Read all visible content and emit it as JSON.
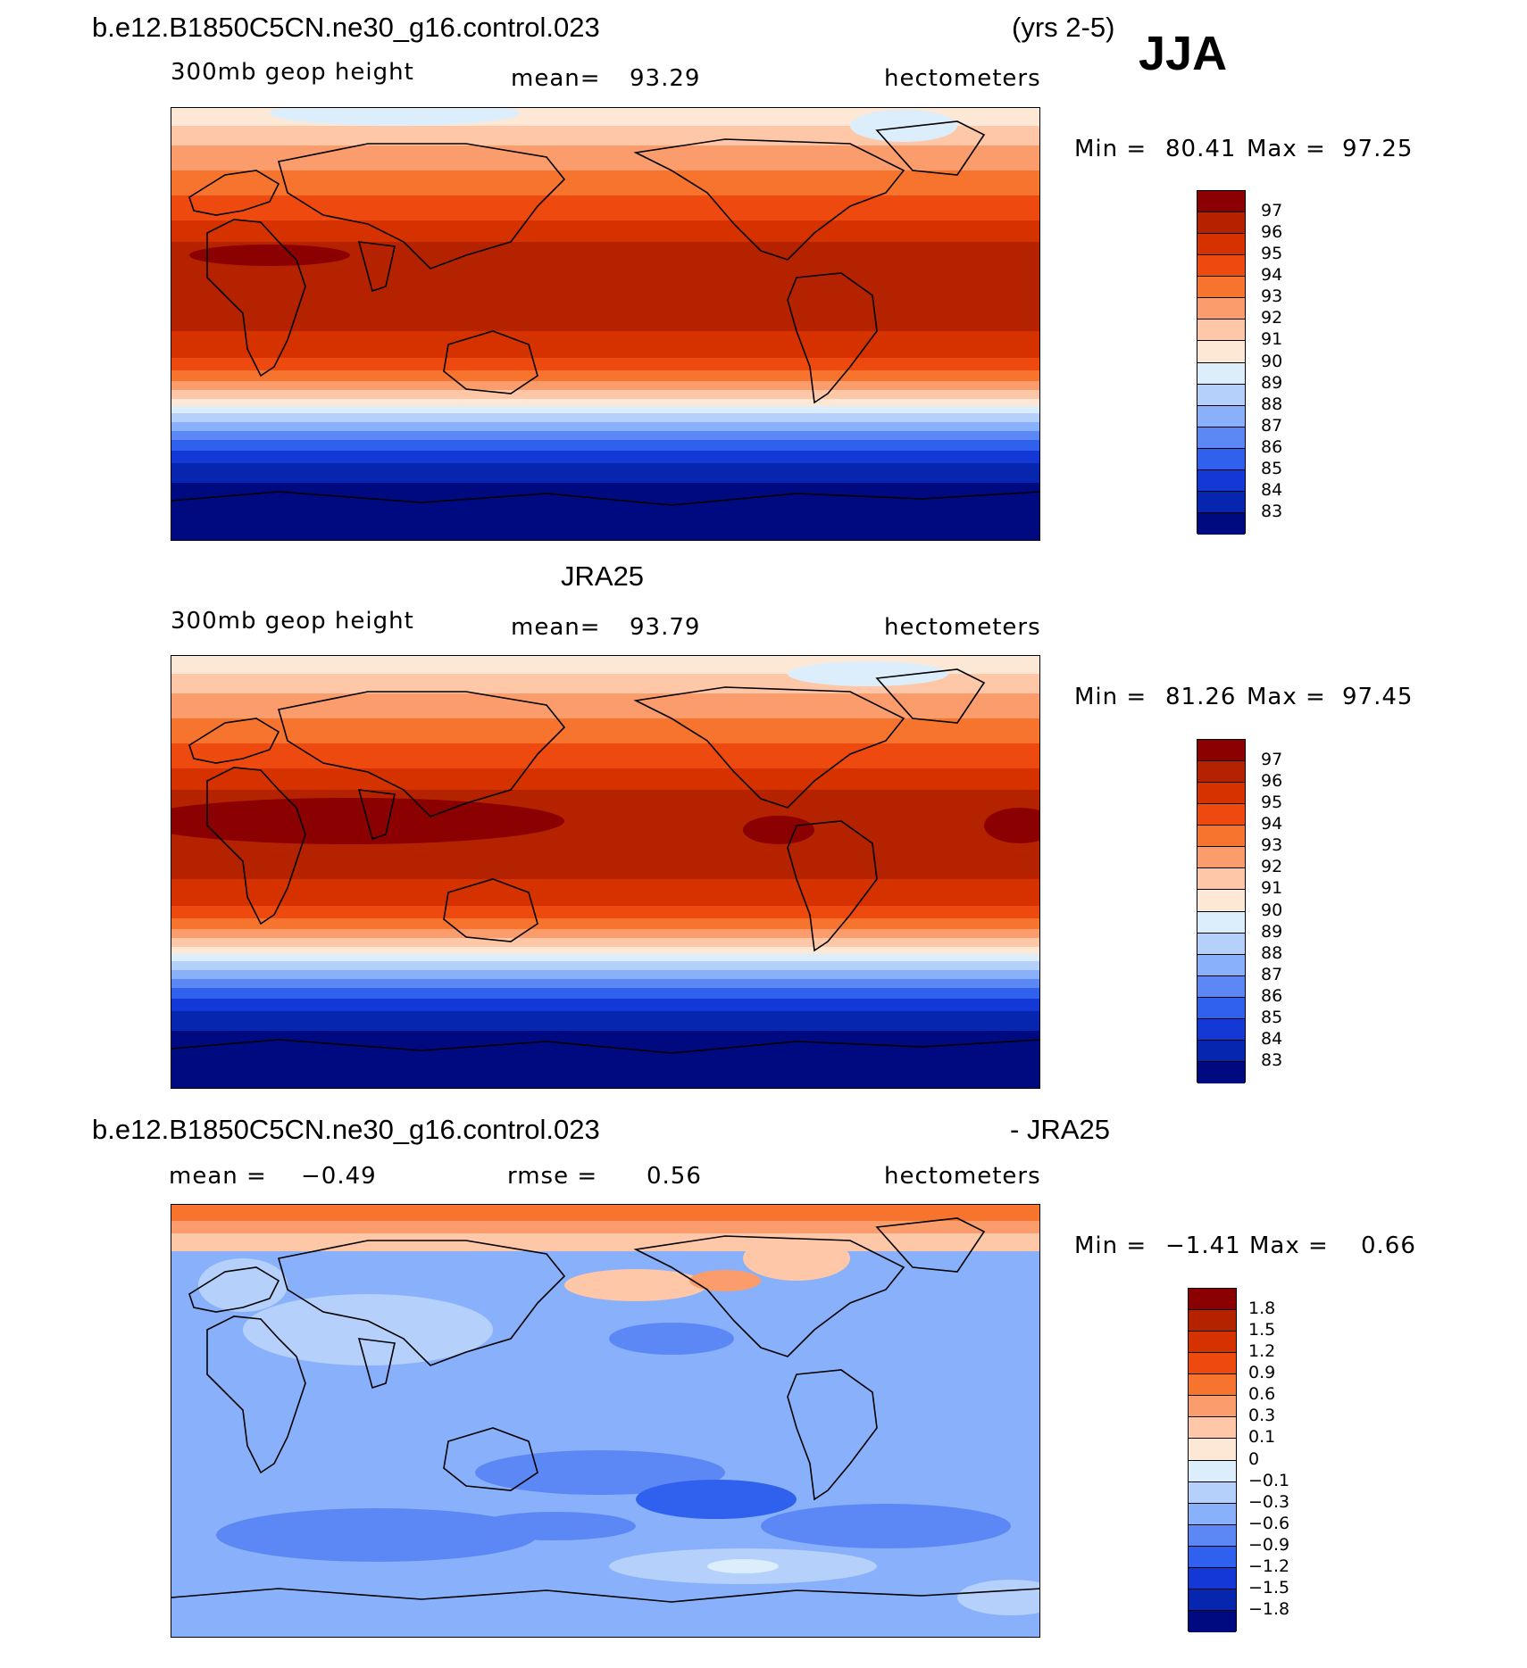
{
  "header": {
    "case": "b.e12.B1850C5CN.ne30_g16.control.023",
    "years": "(yrs 2-5)",
    "season": "JJA"
  },
  "panels": [
    {
      "title": "",
      "variable": "300mb geop height",
      "stat1": "mean=",
      "stat1_value": "93.29",
      "stat2": "",
      "stat2_value": "",
      "units": "hectometers",
      "minmax_label1": "Min =",
      "min": "80.41",
      "minmax_label2": "Max =",
      "max": "97.25"
    },
    {
      "title": "JRA25",
      "variable": "300mb geop height",
      "stat1": "mean=",
      "stat1_value": "93.79",
      "stat2": "",
      "stat2_value": "",
      "units": "hectometers",
      "minmax_label1": "Min =",
      "min": "81.26",
      "minmax_label2": "Max =",
      "max": "97.45"
    },
    {
      "title": "b.e12.B1850C5CN.ne30_g16.control.023",
      "title_right": "- JRA25",
      "variable": "",
      "stat1": "mean =",
      "stat1_value": "−0.49",
      "stat2": "rmse =",
      "stat2_value": "0.56",
      "units": "hectometers",
      "minmax_label1": "Min =",
      "min": "−1.41",
      "minmax_label2": "Max =",
      "max": "0.66"
    }
  ],
  "colorbars": {
    "abs": {
      "labels": [
        "97",
        "96",
        "95",
        "94",
        "93",
        "92",
        "91",
        "90",
        "89",
        "88",
        "87",
        "86",
        "85",
        "84",
        "83"
      ],
      "colors": [
        "#8b0000",
        "#b52200",
        "#d63200",
        "#ee4a10",
        "#f7742e",
        "#fb9c6c",
        "#fdc7a8",
        "#fde8d6",
        "#dceefc",
        "#b4d0fb",
        "#89b0fa",
        "#5c88f6",
        "#2f60ee",
        "#1438d6",
        "#0626b0",
        "#000a80"
      ]
    },
    "diff": {
      "labels": [
        "1.8",
        "1.5",
        "1.2",
        "0.9",
        "0.6",
        "0.3",
        "0.1",
        "0",
        "−0.1",
        "−0.3",
        "−0.6",
        "−0.9",
        "−1.2",
        "−1.5",
        "−1.8"
      ],
      "colors": [
        "#8b0000",
        "#b52200",
        "#d63200",
        "#ee4a10",
        "#f7742e",
        "#fb9c6c",
        "#fdc7a8",
        "#fde8d6",
        "#dceefc",
        "#b4d0fb",
        "#89b0fa",
        "#5c88f6",
        "#2f60ee",
        "#1438d6",
        "#0626b0",
        "#000a80"
      ]
    }
  }
}
